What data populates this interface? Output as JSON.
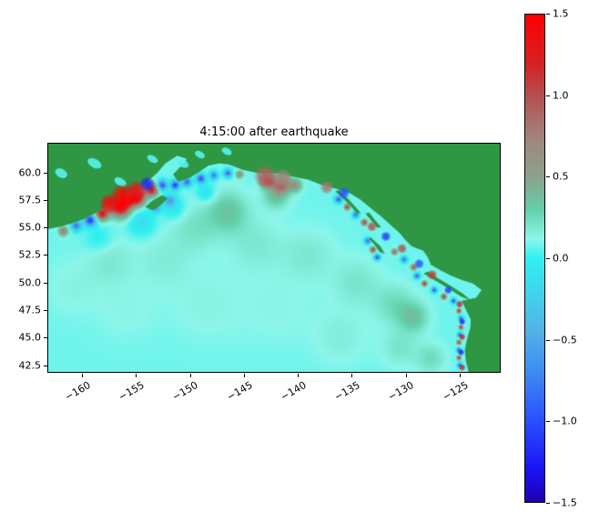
{
  "chart_data": {
    "type": "heatmap",
    "title": "4:15:00 after earthquake",
    "xlabel": "",
    "ylabel": "",
    "x": {
      "min": -163.2,
      "max": -121.2,
      "ticks": [
        -160,
        -155,
        -150,
        -145,
        -140,
        -135,
        -130,
        -125
      ],
      "tick_labels": [
        "−160",
        "−155",
        "−150",
        "−145",
        "−140",
        "−135",
        "−130",
        "−125"
      ]
    },
    "y": {
      "min": 41.8,
      "max": 62.7,
      "ticks": [
        60.0,
        57.5,
        55.0,
        52.5,
        50.0,
        47.5,
        45.0,
        42.5
      ],
      "tick_labels": [
        "60.0",
        "57.5",
        "55.0",
        "52.5",
        "50.0",
        "47.5",
        "45.0",
        "42.5"
      ]
    },
    "colorbar": {
      "min": -1.5,
      "max": 1.5,
      "ticks": [
        1.5,
        1.0,
        0.5,
        0.0,
        -0.5,
        -1.0,
        -1.5
      ],
      "tick_labels": [
        "1.5",
        "1.0",
        "0.5",
        "0.0",
        "−0.5",
        "−1.0",
        "−1.5"
      ]
    },
    "colormap": [
      [
        -1.5,
        "#1c00b4"
      ],
      [
        -1.3,
        "#1a14f2"
      ],
      [
        -1.0,
        "#2a50ff"
      ],
      [
        -0.7,
        "#3e8cf2"
      ],
      [
        -0.45,
        "#52b2e6"
      ],
      [
        -0.2,
        "#3ed6ee"
      ],
      [
        0.0,
        "#30f0f0"
      ],
      [
        0.12,
        "#8df6ea"
      ],
      [
        0.3,
        "#62d0a8"
      ],
      [
        0.5,
        "#8ba28e"
      ],
      [
        0.75,
        "#a3837a"
      ],
      [
        1.0,
        "#b45050"
      ],
      [
        1.2,
        "#d42222"
      ],
      [
        1.5,
        "#ff0000"
      ]
    ],
    "ocean_base_value": 0.08,
    "land_color": "#2f9644",
    "land_polygons": [
      [
        [
          -163.2,
          62.7
        ],
        [
          -121.2,
          62.7
        ],
        [
          -121.2,
          41.8
        ],
        [
          -124.1,
          41.8
        ],
        [
          -124.35,
          42.8
        ],
        [
          -124.45,
          43.8
        ],
        [
          -124.25,
          44.8
        ],
        [
          -123.95,
          45.8
        ],
        [
          -123.9,
          46.6
        ],
        [
          -124.3,
          47.4
        ],
        [
          -124.75,
          48.3
        ],
        [
          -123.4,
          48.6
        ],
        [
          -122.9,
          49.3
        ],
        [
          -123.7,
          49.9
        ],
        [
          -124.7,
          50.2
        ],
        [
          -125.7,
          50.6
        ],
        [
          -126.7,
          51.1
        ],
        [
          -127.6,
          51.6
        ],
        [
          -127.9,
          52.3
        ],
        [
          -128.3,
          52.9
        ],
        [
          -129.4,
          53.3
        ],
        [
          -130.0,
          53.9
        ],
        [
          -130.5,
          54.5
        ],
        [
          -131.3,
          55.2
        ],
        [
          -132.2,
          56.0
        ],
        [
          -133.2,
          56.8
        ],
        [
          -134.2,
          57.6
        ],
        [
          -135.2,
          58.2
        ],
        [
          -136.5,
          58.6
        ],
        [
          -137.7,
          58.9
        ],
        [
          -139.0,
          59.4
        ],
        [
          -140.5,
          59.7
        ],
        [
          -142.0,
          60.0
        ],
        [
          -143.6,
          60.0
        ],
        [
          -145.1,
          60.3
        ],
        [
          -146.4,
          60.8
        ],
        [
          -147.3,
          60.9
        ],
        [
          -148.3,
          60.7
        ],
        [
          -149.2,
          60.1
        ],
        [
          -150.0,
          59.6
        ],
        [
          -151.1,
          59.2
        ],
        [
          -151.6,
          59.9
        ],
        [
          -150.8,
          60.7
        ],
        [
          -150.3,
          61.3
        ],
        [
          -151.2,
          61.6
        ],
        [
          -152.3,
          60.9
        ],
        [
          -153.1,
          60.0
        ],
        [
          -153.9,
          59.3
        ],
        [
          -154.6,
          58.7
        ],
        [
          -155.7,
          58.2
        ],
        [
          -156.7,
          57.5
        ],
        [
          -157.7,
          57.0
        ],
        [
          -158.7,
          56.4
        ],
        [
          -159.9,
          55.8
        ],
        [
          -161.0,
          55.4
        ],
        [
          -162.1,
          55.1
        ],
        [
          -163.2,
          54.9
        ]
      ],
      [
        [
          -154.2,
          56.9
        ],
        [
          -153.5,
          57.5
        ],
        [
          -152.6,
          58.0
        ],
        [
          -152.1,
          57.7
        ],
        [
          -152.7,
          57.1
        ],
        [
          -153.5,
          56.6
        ]
      ],
      [
        [
          -133.2,
          54.1
        ],
        [
          -132.3,
          53.3
        ],
        [
          -131.9,
          52.6
        ],
        [
          -132.4,
          52.8
        ],
        [
          -132.9,
          53.5
        ],
        [
          -133.4,
          54.0
        ]
      ],
      [
        [
          -128.3,
          50.8
        ],
        [
          -127.1,
          50.1
        ],
        [
          -125.9,
          49.4
        ],
        [
          -124.8,
          48.7
        ],
        [
          -123.9,
          48.35
        ],
        [
          -124.6,
          48.95
        ],
        [
          -125.8,
          49.7
        ],
        [
          -126.9,
          50.35
        ],
        [
          -127.9,
          51.0
        ]
      ],
      [
        [
          -136.5,
          58.35
        ],
        [
          -135.7,
          57.6
        ],
        [
          -135.0,
          56.9
        ],
        [
          -134.5,
          56.3
        ],
        [
          -134.15,
          56.35
        ],
        [
          -134.7,
          57.0
        ],
        [
          -135.4,
          57.75
        ],
        [
          -136.15,
          58.45
        ]
      ],
      [
        [
          -133.7,
          56.3
        ],
        [
          -133.1,
          55.6
        ],
        [
          -132.6,
          55.0
        ],
        [
          -132.25,
          55.05
        ],
        [
          -132.8,
          55.7
        ],
        [
          -133.35,
          56.4
        ]
      ]
    ],
    "lakes": [
      [
        -150.7,
        60.9,
        0.6,
        0.35
      ],
      [
        -149.1,
        61.7,
        0.5,
        0.3
      ],
      [
        -153.5,
        61.3,
        0.55,
        0.3
      ],
      [
        -156.5,
        59.2,
        0.6,
        0.35
      ],
      [
        -158.9,
        60.9,
        0.7,
        0.4
      ],
      [
        -162.0,
        60.0,
        0.6,
        0.4
      ],
      [
        -146.6,
        62.0,
        0.5,
        0.3
      ]
    ],
    "anomalies": [
      [
        -156.5,
        57.0,
        1.1,
        1.5
      ],
      [
        -155.0,
        57.8,
        0.9,
        1.5
      ],
      [
        -153.6,
        58.5,
        0.7,
        1.2
      ],
      [
        -158.2,
        56.3,
        0.7,
        1.2
      ],
      [
        -159.3,
        55.7,
        0.6,
        -1.2
      ],
      [
        -160.6,
        55.2,
        0.5,
        -0.9
      ],
      [
        -161.8,
        54.7,
        0.5,
        0.7
      ],
      [
        -153.2,
        56.9,
        0.5,
        -0.8
      ],
      [
        -151.9,
        57.5,
        0.6,
        -0.6
      ],
      [
        -152.6,
        58.9,
        0.5,
        -1.1
      ],
      [
        -151.4,
        58.9,
        0.45,
        -1.2
      ],
      [
        -150.3,
        59.2,
        0.45,
        -1.0
      ],
      [
        -149.0,
        59.5,
        0.45,
        -1.1
      ],
      [
        -147.8,
        59.8,
        0.4,
        -0.9
      ],
      [
        -146.5,
        60.0,
        0.4,
        -1.0
      ],
      [
        -145.4,
        59.9,
        0.4,
        0.6
      ],
      [
        -141.5,
        59.0,
        0.9,
        0.8
      ],
      [
        -140.2,
        58.9,
        0.7,
        0.5
      ],
      [
        -142.8,
        59.3,
        0.7,
        1.0
      ],
      [
        -142.0,
        58.0,
        1.4,
        0.3
      ],
      [
        -154.5,
        55.5,
        1.4,
        -0.22
      ],
      [
        -151.5,
        56.8,
        1.2,
        -0.18
      ],
      [
        -148.5,
        58.2,
        1.0,
        -0.2
      ],
      [
        -158.5,
        54.0,
        1.5,
        -0.12
      ],
      [
        -146.5,
        56.5,
        2.2,
        0.26
      ],
      [
        -149.5,
        55.0,
        2.6,
        0.13
      ],
      [
        -144.0,
        53.5,
        3.0,
        0.1
      ],
      [
        -152.5,
        52.0,
        3.0,
        0.08
      ],
      [
        -139.0,
        52.5,
        3.0,
        0.1
      ],
      [
        -134.5,
        50.0,
        2.6,
        0.12
      ],
      [
        -131.0,
        48.0,
        2.2,
        0.16
      ],
      [
        -129.2,
        46.8,
        1.6,
        0.26
      ],
      [
        -157.5,
        52.0,
        2.6,
        0.1
      ],
      [
        -161.0,
        49.5,
        3.0,
        0.06
      ],
      [
        -156.0,
        47.5,
        3.4,
        0.05
      ],
      [
        -148.5,
        48.0,
        4.0,
        0.06
      ],
      [
        -142.0,
        47.5,
        4.0,
        0.05
      ],
      [
        -136.0,
        45.0,
        3.0,
        0.08
      ],
      [
        -130.5,
        44.0,
        2.0,
        0.12
      ],
      [
        -127.6,
        43.0,
        1.6,
        0.16
      ],
      [
        -136.2,
        57.6,
        0.35,
        -1.1
      ],
      [
        -135.4,
        56.9,
        0.3,
        1.1
      ],
      [
        -134.6,
        56.2,
        0.3,
        -1.0
      ],
      [
        -133.8,
        55.5,
        0.3,
        1.1
      ],
      [
        -133.5,
        53.8,
        0.3,
        -1.0
      ],
      [
        -133.0,
        53.0,
        0.28,
        1.1
      ],
      [
        -132.6,
        52.3,
        0.28,
        -1.2
      ],
      [
        -131.0,
        52.8,
        0.3,
        0.9
      ],
      [
        -130.1,
        52.1,
        0.3,
        -1.0
      ],
      [
        -129.2,
        51.4,
        0.3,
        1.0
      ],
      [
        -128.9,
        50.6,
        0.28,
        -1.1
      ],
      [
        -128.2,
        49.9,
        0.26,
        1.2
      ],
      [
        -127.3,
        49.3,
        0.26,
        -1.2
      ],
      [
        -126.4,
        48.7,
        0.26,
        1.2
      ],
      [
        -125.5,
        48.3,
        0.24,
        -1.3
      ],
      [
        -125.0,
        47.4,
        0.22,
        1.3
      ],
      [
        -124.8,
        46.7,
        0.22,
        -1.2
      ],
      [
        -124.8,
        45.9,
        0.22,
        1.25
      ],
      [
        -124.9,
        45.2,
        0.22,
        -1.3
      ],
      [
        -125.0,
        44.5,
        0.22,
        1.3
      ],
      [
        -125.0,
        43.8,
        0.22,
        -1.25
      ],
      [
        -125.0,
        43.1,
        0.22,
        1.25
      ],
      [
        -124.9,
        42.4,
        0.22,
        -1.3
      ]
    ],
    "coastal_overlays": [
      [
        -156.2,
        57.8,
        0.8,
        1.5
      ],
      [
        -157.5,
        57.2,
        0.6,
        1.4
      ],
      [
        -155.0,
        58.4,
        0.6,
        1.3
      ],
      [
        -154.0,
        59.0,
        0.45,
        -1.2
      ],
      [
        -143.0,
        59.7,
        0.7,
        0.9
      ],
      [
        -141.4,
        59.5,
        0.6,
        0.7
      ],
      [
        -137.3,
        58.7,
        0.4,
        0.8
      ],
      [
        -135.7,
        58.2,
        0.35,
        -1.0
      ],
      [
        -133.1,
        55.1,
        0.3,
        1.0
      ],
      [
        -131.8,
        54.2,
        0.3,
        -1.1
      ],
      [
        -130.3,
        53.1,
        0.3,
        1.0
      ],
      [
        -128.7,
        51.7,
        0.3,
        -1.0
      ],
      [
        -127.5,
        50.7,
        0.3,
        1.1
      ],
      [
        -126.0,
        49.3,
        0.25,
        -1.1
      ],
      [
        -124.95,
        48.0,
        0.22,
        1.2
      ],
      [
        -124.7,
        46.4,
        0.2,
        -1.2
      ],
      [
        -124.7,
        45.0,
        0.2,
        1.2
      ],
      [
        -124.8,
        43.6,
        0.2,
        -1.2
      ],
      [
        -124.7,
        42.2,
        0.2,
        1.2
      ]
    ]
  }
}
